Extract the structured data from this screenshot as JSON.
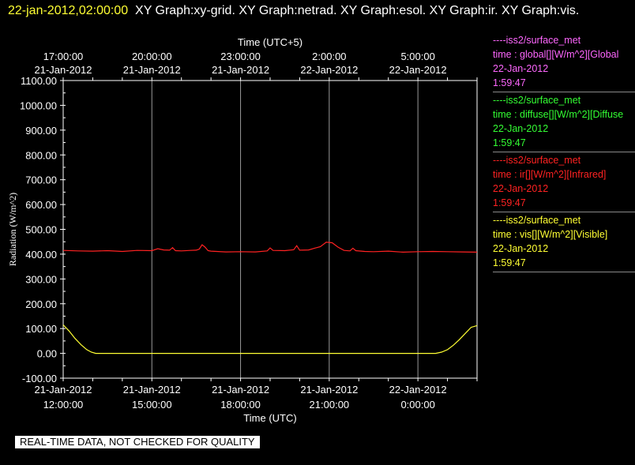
{
  "header": {
    "timestamp": "22-jan-2012,02:00:00",
    "graphs_text": "XY Graph:xy-grid.  XY Graph:netrad.  XY Graph:esol.  XY Graph:ir.  XY Graph:vis."
  },
  "notice": "REAL-TIME DATA, NOT CHECKED FOR QUALITY",
  "legend": [
    {
      "source": "----iss2/surface_met",
      "variable": "time : global[][W/m^2][Global",
      "date": "22-Jan-2012",
      "time": "1:59:47",
      "color": "#ff66ff"
    },
    {
      "source": "----iss2/surface_met",
      "variable": "time : diffuse[][W/m^2][Diffuse",
      "date": "22-Jan-2012",
      "time": "1:59:47",
      "color": "#33ff33"
    },
    {
      "source": "----iss2/surface_met",
      "variable": "time : ir[][W/m^2][Infrared]",
      "date": "22-Jan-2012",
      "time": "1:59:47",
      "color": "#ff2222"
    },
    {
      "source": "----iss2/surface_met",
      "variable": "time : vis[][W/m^2][Visible]",
      "date": "22-Jan-2012",
      "time": "1:59:47",
      "color": "#ffff33"
    }
  ],
  "chart_data": {
    "type": "line",
    "title": "",
    "ylabel": "Radiation (W/m^2)",
    "xlabel": "Time (UTC)",
    "top_xlabel": "Time (UTC+5)",
    "ylim": [
      -100,
      1100
    ],
    "xlim": [
      0,
      14
    ],
    "x_units": "hours since 21-Jan-2012 12:00:00 UTC",
    "yticks": [
      "1100.00",
      "1000.00",
      "900.00",
      "800.00",
      "700.00",
      "600.00",
      "500.00",
      "400.00",
      "300.00",
      "200.00",
      "100.00",
      "0.00",
      "-100.00"
    ],
    "bottom_ticks": [
      {
        "date": "21-Jan-2012",
        "time": "12:00:00",
        "x": 0
      },
      {
        "date": "21-Jan-2012",
        "time": "15:00:00",
        "x": 3
      },
      {
        "date": "21-Jan-2012",
        "time": "18:00:00",
        "x": 6
      },
      {
        "date": "21-Jan-2012",
        "time": "21:00:00",
        "x": 9
      },
      {
        "date": "22-Jan-2012",
        "time": "0:00:00",
        "x": 12
      }
    ],
    "top_ticks": [
      {
        "time": "17:00:00",
        "date": "21-Jan-2012",
        "x": 0
      },
      {
        "time": "20:00:00",
        "date": "21-Jan-2012",
        "x": 3
      },
      {
        "time": "23:00:00",
        "date": "21-Jan-2012",
        "x": 6
      },
      {
        "time": "2:00:00",
        "date": "22-Jan-2012",
        "x": 9
      },
      {
        "time": "5:00:00",
        "date": "22-Jan-2012",
        "x": 12
      }
    ],
    "grid": true,
    "series": [
      {
        "color": "#ff2222",
        "points": [
          [
            0,
            415
          ],
          [
            0.5,
            413
          ],
          [
            1,
            412
          ],
          [
            1.5,
            414
          ],
          [
            2,
            411
          ],
          [
            2.5,
            415
          ],
          [
            3,
            414
          ],
          [
            3.2,
            422
          ],
          [
            3.4,
            417
          ],
          [
            3.6,
            416
          ],
          [
            3.7,
            426
          ],
          [
            3.8,
            414
          ],
          [
            4,
            413
          ],
          [
            4.3,
            415
          ],
          [
            4.5,
            416
          ],
          [
            4.6,
            420
          ],
          [
            4.7,
            438
          ],
          [
            4.8,
            428
          ],
          [
            4.9,
            414
          ],
          [
            5,
            412
          ],
          [
            5.5,
            409
          ],
          [
            6,
            410
          ],
          [
            6.5,
            409
          ],
          [
            6.9,
            413
          ],
          [
            7,
            425
          ],
          [
            7.1,
            415
          ],
          [
            7.5,
            414
          ],
          [
            7.8,
            418
          ],
          [
            7.9,
            434
          ],
          [
            8,
            416
          ],
          [
            8.3,
            417
          ],
          [
            8.5,
            424
          ],
          [
            8.7,
            430
          ],
          [
            8.9,
            448
          ],
          [
            9.1,
            446
          ],
          [
            9.3,
            428
          ],
          [
            9.5,
            415
          ],
          [
            9.7,
            413
          ],
          [
            9.8,
            424
          ],
          [
            9.9,
            414
          ],
          [
            10.2,
            411
          ],
          [
            10.5,
            410
          ],
          [
            11,
            412
          ],
          [
            11.5,
            408
          ],
          [
            12,
            410
          ],
          [
            12.5,
            411
          ],
          [
            13,
            410
          ],
          [
            13.5,
            409
          ],
          [
            14,
            408
          ]
        ]
      },
      {
        "color": "#ffff33",
        "points": [
          [
            0,
            115
          ],
          [
            0.2,
            90
          ],
          [
            0.4,
            60
          ],
          [
            0.6,
            35
          ],
          [
            0.8,
            15
          ],
          [
            0.95,
            5
          ],
          [
            1.1,
            0
          ],
          [
            2,
            0
          ],
          [
            4,
            0
          ],
          [
            6,
            0
          ],
          [
            8,
            0
          ],
          [
            10,
            0
          ],
          [
            12,
            0
          ],
          [
            12.6,
            0
          ],
          [
            12.8,
            5
          ],
          [
            13,
            15
          ],
          [
            13.2,
            33
          ],
          [
            13.4,
            55
          ],
          [
            13.6,
            80
          ],
          [
            13.8,
            105
          ],
          [
            14,
            112
          ]
        ]
      }
    ]
  }
}
